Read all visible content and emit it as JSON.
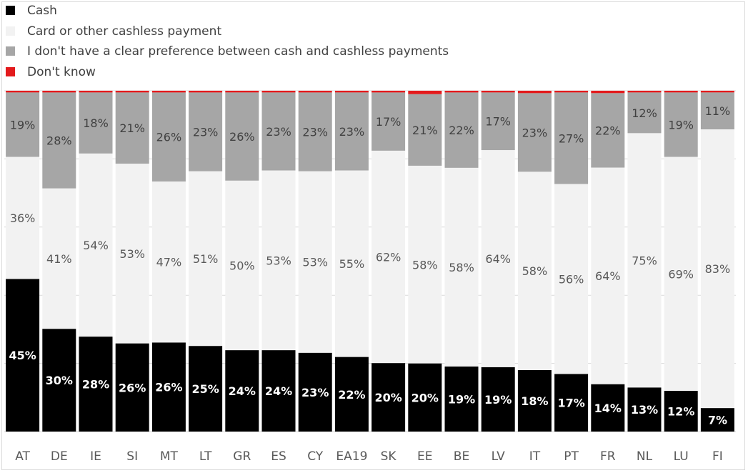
{
  "chart_data": {
    "type": "bar",
    "stacked": true,
    "normalized": true,
    "categories": [
      "AT",
      "DE",
      "IE",
      "SI",
      "MT",
      "LT",
      "GR",
      "ES",
      "CY",
      "EA19",
      "SK",
      "EE",
      "BE",
      "LV",
      "IT",
      "PT",
      "FR",
      "NL",
      "LU",
      "FI"
    ],
    "series": [
      {
        "name": "Cash",
        "color": "#000000",
        "values": [
          45,
          30,
          28,
          26,
          26,
          25,
          24,
          24,
          23,
          22,
          20,
          20,
          19,
          19,
          18,
          17,
          14,
          13,
          12,
          7
        ],
        "labels": [
          "45%",
          "30%",
          "28%",
          "26%",
          "26%",
          "25%",
          "24%",
          "24%",
          "23%",
          "22%",
          "20%",
          "20%",
          "19%",
          "19%",
          "18%",
          "17%",
          "14%",
          "13%",
          "12%",
          "7%"
        ]
      },
      {
        "name": "Card or other cashless payment",
        "color": "#f2f2f2",
        "values": [
          36,
          41,
          54,
          53,
          47,
          51,
          50,
          53,
          53,
          55,
          62,
          58,
          58,
          64,
          58,
          56,
          64,
          75,
          69,
          83
        ],
        "labels": [
          "36%",
          "41%",
          "54%",
          "53%",
          "47%",
          "51%",
          "50%",
          "53%",
          "53%",
          "55%",
          "62%",
          "58%",
          "58%",
          "64%",
          "58%",
          "56%",
          "64%",
          "75%",
          "69%",
          "83%"
        ]
      },
      {
        "name": "I don't have a clear preference between cash and cashless payments",
        "color": "#a6a6a6",
        "values": [
          19,
          28,
          18,
          21,
          26,
          23,
          26,
          23,
          23,
          23,
          17,
          21,
          22,
          17,
          23,
          27,
          22,
          12,
          19,
          11
        ],
        "labels": [
          "19%",
          "28%",
          "18%",
          "21%",
          "26%",
          "23%",
          "26%",
          "23%",
          "23%",
          "23%",
          "17%",
          "21%",
          "22%",
          "17%",
          "23%",
          "27%",
          "22%",
          "12%",
          "19%",
          "11%"
        ]
      },
      {
        "name": "Don't know",
        "color": "#e31a1c",
        "values": [
          0.5,
          0.5,
          0.5,
          0.5,
          0.5,
          0.5,
          0.5,
          0.5,
          0.5,
          0.5,
          0.5,
          1,
          0.5,
          0.5,
          0.7,
          0.5,
          0.7,
          0.5,
          0.5,
          0.5
        ],
        "labels": []
      }
    ],
    "ylim": [
      0,
      100
    ],
    "grid": true,
    "legend_position": "top-left",
    "title": "",
    "xlabel": "",
    "ylabel": ""
  }
}
